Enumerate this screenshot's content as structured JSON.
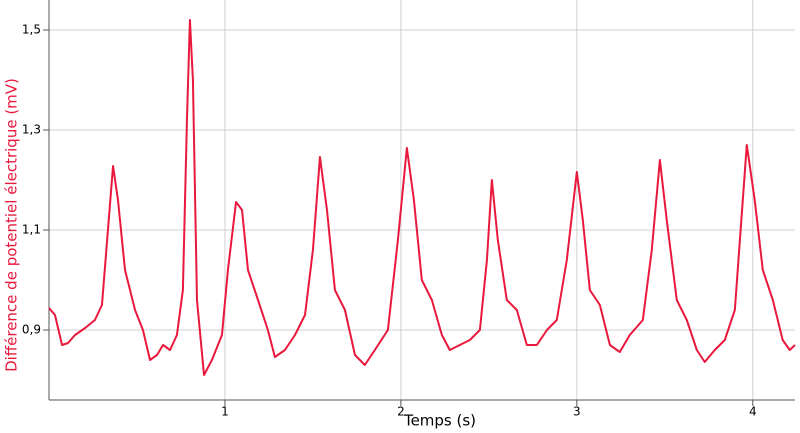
{
  "chart_data": {
    "type": "line",
    "x_label": "Temps (s)",
    "y_label": "Différence de potentiel électrique (mV)",
    "xlim": [
      0,
      4.24
    ],
    "ylim": [
      0.76,
      1.56
    ],
    "xticks": [
      1,
      2,
      3,
      4
    ],
    "yticks": [
      {
        "value": 0.9,
        "label": "0,9"
      },
      {
        "value": 1.1,
        "label": "1,1"
      },
      {
        "value": 1.3,
        "label": "1,3"
      },
      {
        "value": 1.5,
        "label": "1,5"
      }
    ],
    "grid": true,
    "series": [
      {
        "color": "#e8193c",
        "x": [
          0,
          0.034,
          0.074,
          0.108,
          0.148,
          0.205,
          0.261,
          0.301,
          0.335,
          0.364,
          0.392,
          0.432,
          0.489,
          0.534,
          0.574,
          0.614,
          0.648,
          0.688,
          0.727,
          0.761,
          0.784,
          0.801,
          0.818,
          0.841,
          0.881,
          0.926,
          0.983,
          1.017,
          1.063,
          1.097,
          1.131,
          1.188,
          1.244,
          1.284,
          1.341,
          1.398,
          1.455,
          1.5,
          1.54,
          1.58,
          1.625,
          1.682,
          1.739,
          1.795,
          1.852,
          1.926,
          1.983,
          2.034,
          2.074,
          2.119,
          2.176,
          2.233,
          2.278,
          2.335,
          2.392,
          2.449,
          2.489,
          2.517,
          2.551,
          2.602,
          2.659,
          2.716,
          2.773,
          2.83,
          2.886,
          2.943,
          3.0,
          3.034,
          3.074,
          3.131,
          3.188,
          3.244,
          3.301,
          3.375,
          3.426,
          3.472,
          3.511,
          3.568,
          3.625,
          3.682,
          3.727,
          3.784,
          3.841,
          3.898,
          3.966,
          4.011,
          4.057,
          4.114,
          4.17,
          4.21,
          4.24
        ],
        "values": [
          0.944,
          0.93,
          0.87,
          0.874,
          0.89,
          0.904,
          0.92,
          0.95,
          1.1,
          1.228,
          1.16,
          1.02,
          0.94,
          0.9,
          0.84,
          0.85,
          0.87,
          0.86,
          0.89,
          0.98,
          1.32,
          1.52,
          1.4,
          0.96,
          0.81,
          0.84,
          0.89,
          1.02,
          1.156,
          1.14,
          1.02,
          0.96,
          0.9,
          0.846,
          0.86,
          0.89,
          0.93,
          1.06,
          1.246,
          1.14,
          0.98,
          0.94,
          0.85,
          0.83,
          0.86,
          0.9,
          1.08,
          1.264,
          1.16,
          1.0,
          0.96,
          0.89,
          0.86,
          0.87,
          0.88,
          0.9,
          1.04,
          1.2,
          1.08,
          0.96,
          0.94,
          0.87,
          0.87,
          0.9,
          0.92,
          1.04,
          1.216,
          1.12,
          0.98,
          0.95,
          0.87,
          0.856,
          0.89,
          0.92,
          1.06,
          1.24,
          1.12,
          0.96,
          0.92,
          0.86,
          0.836,
          0.86,
          0.88,
          0.94,
          1.27,
          1.16,
          1.02,
          0.96,
          0.88,
          0.86,
          0.87
        ]
      }
    ]
  }
}
